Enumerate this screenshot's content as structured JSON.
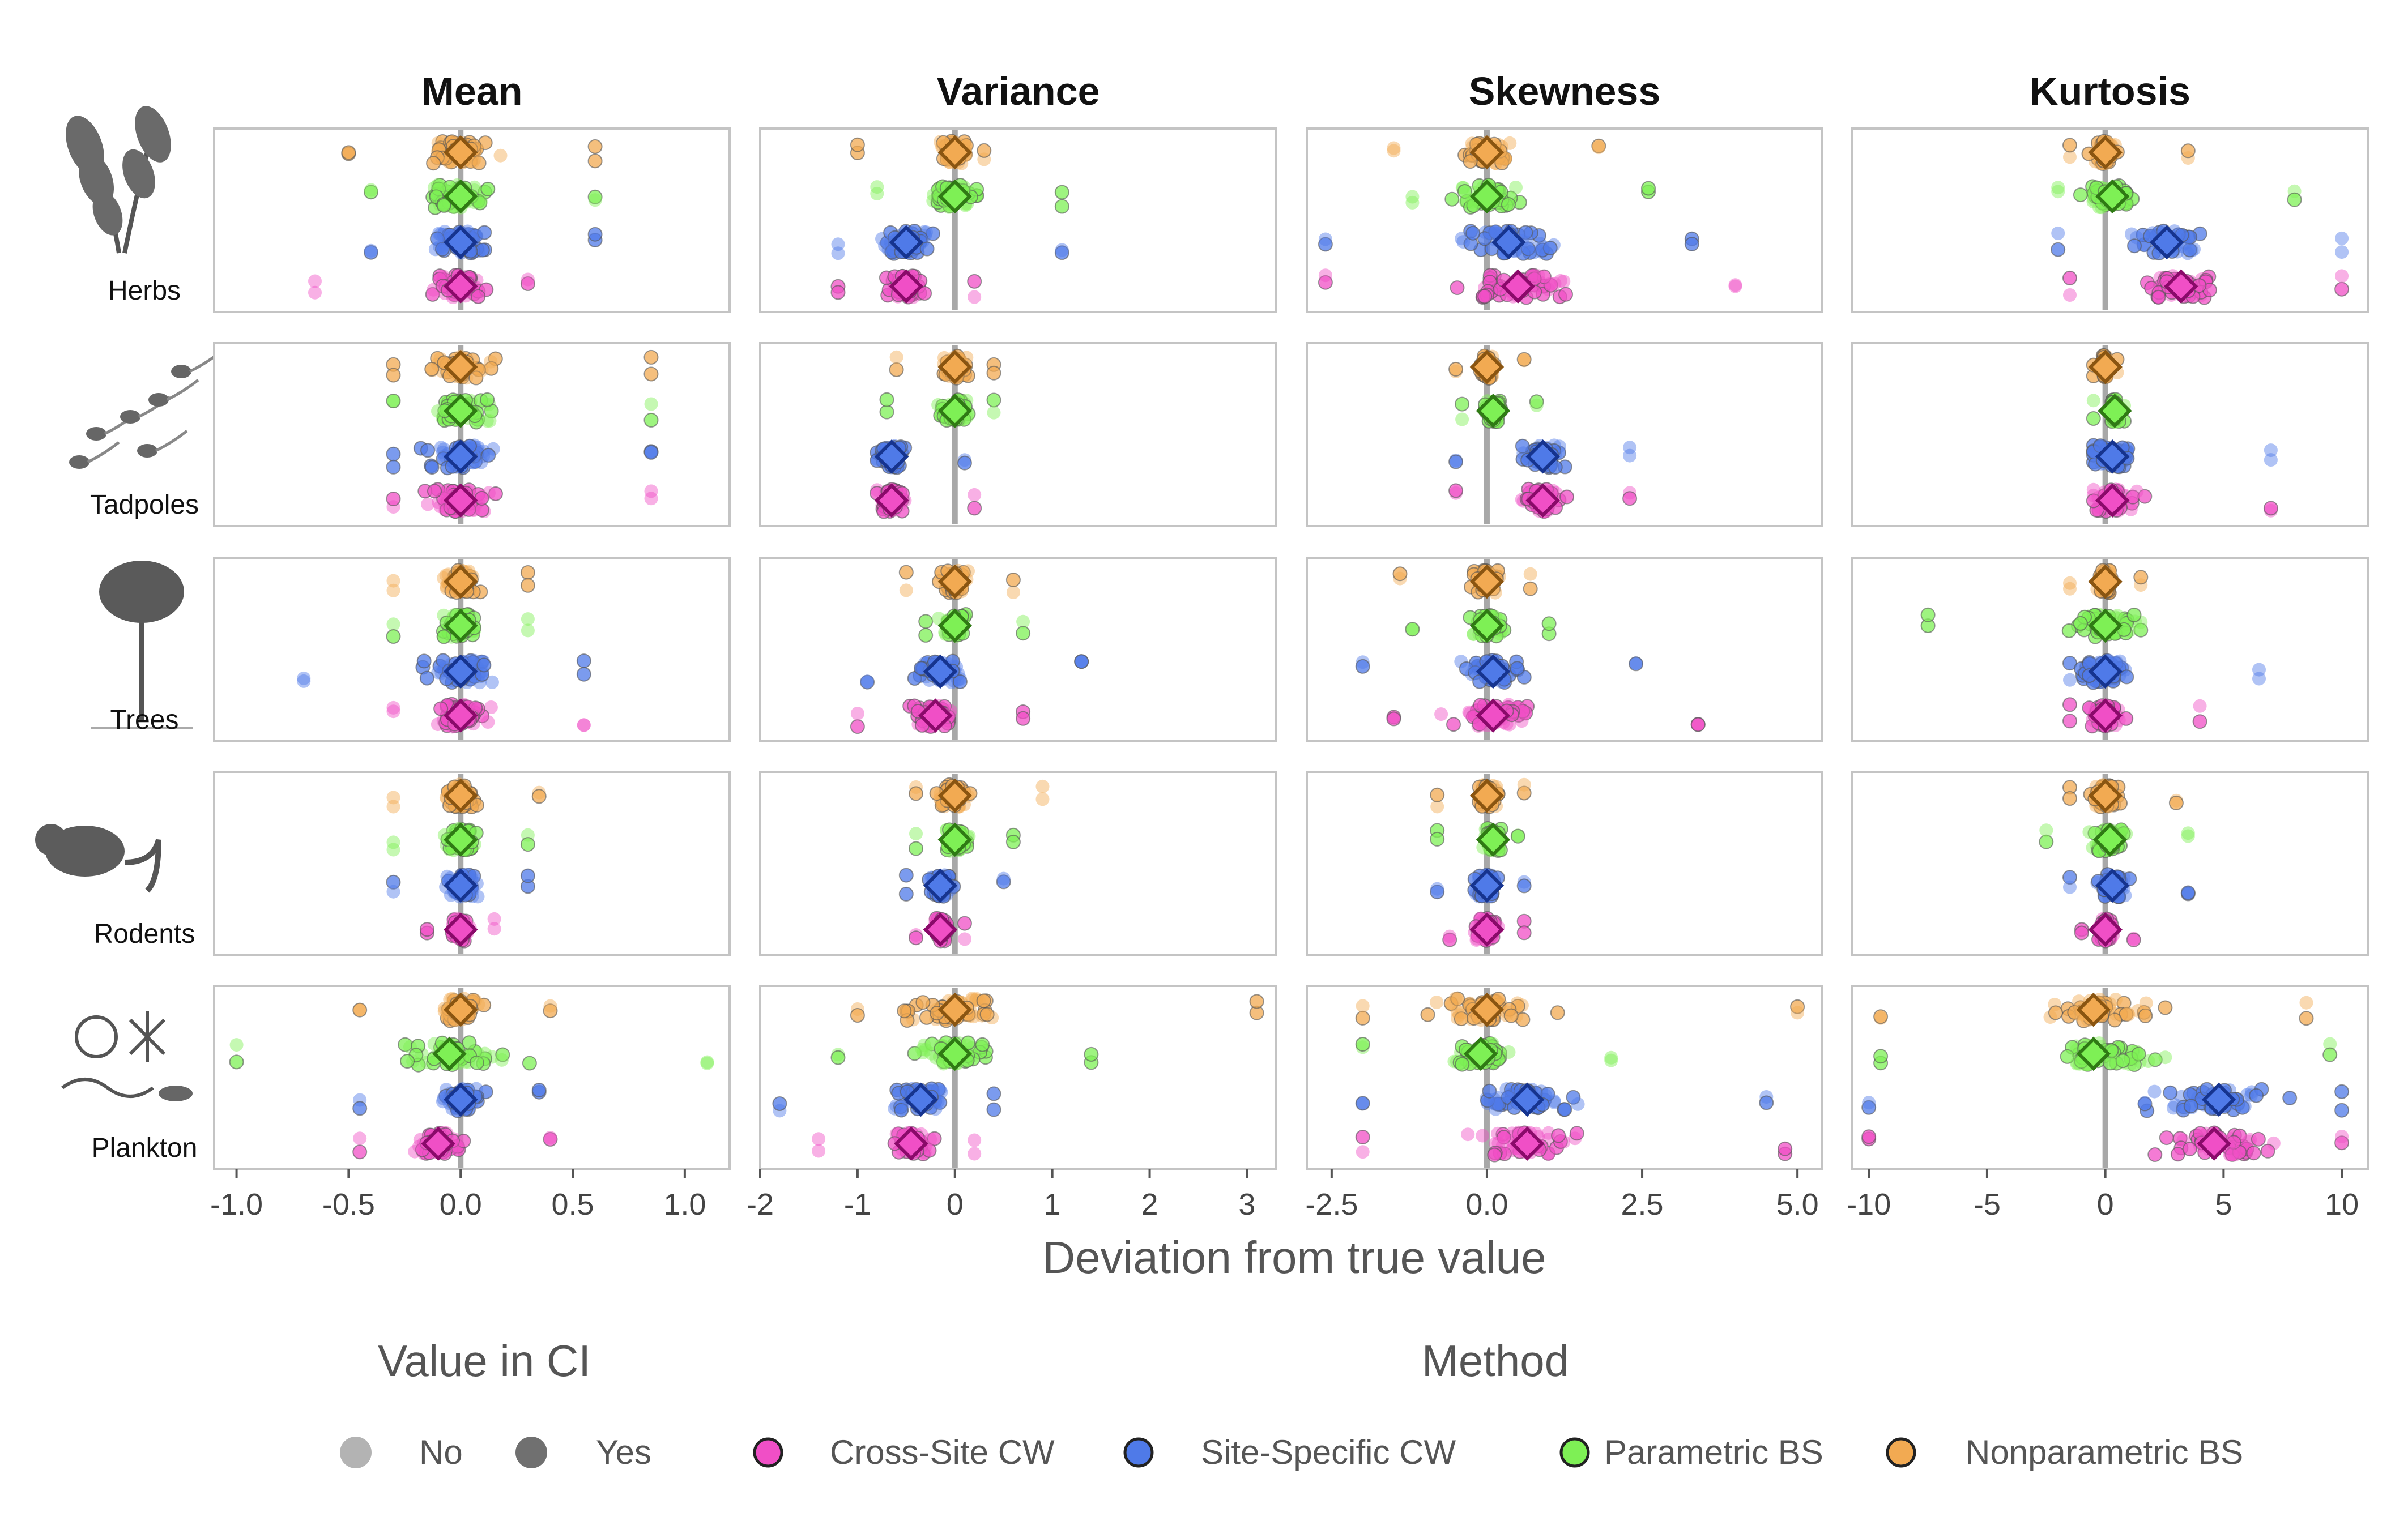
{
  "chart_data": {
    "type": "scatter",
    "facet_columns": [
      "Mean",
      "Variance",
      "Skewness",
      "Kurtosis"
    ],
    "facet_rows": [
      "Herbs",
      "Tadpoles",
      "Trees",
      "Rodents",
      "Plankton"
    ],
    "xlabel": "Deviation from true value",
    "x_ticks": {
      "Mean": [
        "-1.0",
        "-0.5",
        "0.0",
        "0.5",
        "1.0"
      ],
      "Variance": [
        "-2",
        "-1",
        "0",
        "1",
        "2",
        "3"
      ],
      "Skewness": [
        "-2.5",
        "0.0",
        "2.5",
        "5.0"
      ],
      "Kurtosis": [
        "-10",
        "-5",
        "0",
        "5",
        "10"
      ]
    },
    "x_ranges": {
      "Mean": [
        -1.1,
        1.2
      ],
      "Variance": [
        -2,
        3.3
      ],
      "Skewness": [
        -2.9,
        5.4
      ],
      "Kurtosis": [
        -10.7,
        11.1
      ]
    },
    "reference_line": 0,
    "grid": false,
    "legend_position": "bottom",
    "legend": {
      "ci_title": "Value in CI",
      "ci_items": [
        {
          "label": "No",
          "color": "#b3b3b3"
        },
        {
          "label": "Yes",
          "color": "#707070"
        }
      ],
      "method_title": "Method",
      "method_items": [
        {
          "label": "Cross-Site CW",
          "color": "#f04fc6",
          "stroke": "#8a0a6a"
        },
        {
          "label": "Site-Specific CW",
          "color": "#4f7ae8",
          "stroke": "#16348f"
        },
        {
          "label": "Parametric BS",
          "color": "#7ef055",
          "stroke": "#2f7a14"
        },
        {
          "label": "Nonparametric BS",
          "color": "#f2aa52",
          "stroke": "#8a5511"
        }
      ]
    },
    "series_order": [
      "Nonparametric BS",
      "Parametric BS",
      "Site-Specific CW",
      "Cross-Site CW"
    ],
    "median_deviation": {
      "Herbs": {
        "Mean": [
          0.0,
          0.0,
          0.0,
          0.0
        ],
        "Variance": [
          0.0,
          0.0,
          -0.5,
          -0.5
        ],
        "Skewness": [
          0.0,
          0.0,
          0.35,
          0.5
        ],
        "Kurtosis": [
          0.0,
          0.3,
          2.6,
          3.2
        ]
      },
      "Tadpoles": {
        "Mean": [
          0.0,
          0.0,
          0.0,
          0.0
        ],
        "Variance": [
          0.0,
          0.0,
          -0.65,
          -0.65
        ],
        "Skewness": [
          0.0,
          0.1,
          0.9,
          0.9
        ],
        "Kurtosis": [
          0.0,
          0.4,
          0.3,
          0.3
        ]
      },
      "Trees": {
        "Mean": [
          0.0,
          0.0,
          0.0,
          0.0
        ],
        "Variance": [
          0.0,
          0.0,
          -0.15,
          -0.2
        ],
        "Skewness": [
          0.0,
          0.0,
          0.1,
          0.1
        ],
        "Kurtosis": [
          0.0,
          0.0,
          0.0,
          0.0
        ]
      },
      "Rodents": {
        "Mean": [
          0.0,
          0.0,
          0.0,
          0.0
        ],
        "Variance": [
          0.0,
          0.0,
          -0.15,
          -0.15
        ],
        "Skewness": [
          0.0,
          0.1,
          0.0,
          0.0
        ],
        "Kurtosis": [
          0.0,
          0.2,
          0.3,
          0.0
        ]
      },
      "Plankton": {
        "Mean": [
          0.0,
          -0.05,
          0.0,
          -0.1
        ],
        "Variance": [
          0.0,
          0.0,
          -0.35,
          -0.45
        ],
        "Skewness": [
          0.0,
          -0.1,
          0.65,
          0.65
        ],
        "Kurtosis": [
          -0.5,
          -0.5,
          4.8,
          4.6
        ]
      }
    },
    "point_spread": {
      "Herbs": {
        "Mean": [
          [
            -0.5,
            0.6
          ],
          [
            -0.4,
            0.6
          ],
          [
            -0.4,
            0.6
          ],
          [
            -0.65,
            0.3
          ]
        ],
        "Variance": [
          [
            -1.0,
            0.3
          ],
          [
            -0.8,
            1.1
          ],
          [
            -1.2,
            1.1
          ],
          [
            -1.2,
            0.2
          ]
        ],
        "Skewness": [
          [
            -1.5,
            1.8
          ],
          [
            -1.2,
            2.6
          ],
          [
            -2.6,
            3.3
          ],
          [
            -2.6,
            4.0
          ]
        ],
        "Kurtosis": [
          [
            -1.5,
            3.5
          ],
          [
            -2.0,
            8.0
          ],
          [
            -2.0,
            10.0
          ],
          [
            -1.5,
            10.0
          ]
        ]
      },
      "Tadpoles": {
        "Mean": [
          [
            -0.3,
            0.85
          ],
          [
            -0.3,
            0.85
          ],
          [
            -0.3,
            0.85
          ],
          [
            -0.3,
            0.85
          ]
        ],
        "Variance": [
          [
            -0.6,
            0.4
          ],
          [
            -0.7,
            0.4
          ],
          [
            -0.8,
            0.1
          ],
          [
            -0.8,
            0.2
          ]
        ],
        "Skewness": [
          [
            -0.5,
            0.6
          ],
          [
            -0.4,
            0.8
          ],
          [
            -0.5,
            2.3
          ],
          [
            -0.5,
            2.3
          ]
        ],
        "Kurtosis": [
          [
            -0.5,
            0.5
          ],
          [
            -0.5,
            0.8
          ],
          [
            -0.5,
            7.0
          ],
          [
            -0.5,
            7.0
          ]
        ]
      },
      "Trees": {
        "Mean": [
          [
            -0.3,
            0.3
          ],
          [
            -0.3,
            0.3
          ],
          [
            -0.7,
            0.55
          ],
          [
            -0.3,
            0.55
          ]
        ],
        "Variance": [
          [
            -0.5,
            0.6
          ],
          [
            -0.3,
            0.7
          ],
          [
            -0.9,
            1.3
          ],
          [
            -1.0,
            0.7
          ]
        ],
        "Skewness": [
          [
            -1.4,
            0.7
          ],
          [
            -1.2,
            1.0
          ],
          [
            -2.0,
            2.4
          ],
          [
            -1.5,
            3.4
          ]
        ],
        "Kurtosis": [
          [
            -1.5,
            1.5
          ],
          [
            -7.5,
            1.5
          ],
          [
            -1.5,
            6.5
          ],
          [
            -1.5,
            4.0
          ]
        ]
      },
      "Rodents": {
        "Mean": [
          [
            -0.3,
            0.35
          ],
          [
            -0.3,
            0.3
          ],
          [
            -0.3,
            0.3
          ],
          [
            -0.15,
            0.15
          ]
        ],
        "Variance": [
          [
            -0.4,
            0.9
          ],
          [
            -0.4,
            0.6
          ],
          [
            -0.5,
            0.5
          ],
          [
            -0.4,
            0.1
          ]
        ],
        "Skewness": [
          [
            -0.8,
            0.6
          ],
          [
            -0.8,
            0.5
          ],
          [
            -0.8,
            0.6
          ],
          [
            -0.6,
            0.6
          ]
        ],
        "Kurtosis": [
          [
            -1.5,
            3.0
          ],
          [
            -2.5,
            3.5
          ],
          [
            -1.5,
            3.5
          ],
          [
            -1.0,
            1.2
          ]
        ]
      },
      "Plankton": {
        "Mean": [
          [
            -0.45,
            0.4
          ],
          [
            -1.0,
            1.1
          ],
          [
            -0.45,
            0.35
          ],
          [
            -0.45,
            0.4
          ]
        ],
        "Variance": [
          [
            -1.0,
            3.1
          ],
          [
            -1.2,
            1.4
          ],
          [
            -1.8,
            0.4
          ],
          [
            -1.4,
            0.2
          ]
        ],
        "Skewness": [
          [
            -2.0,
            5.0
          ],
          [
            -2.0,
            2.0
          ],
          [
            -2.0,
            4.5
          ],
          [
            -2.0,
            4.8
          ]
        ],
        "Kurtosis": [
          [
            -9.5,
            8.5
          ],
          [
            -9.5,
            9.5
          ],
          [
            -10.0,
            10.0
          ],
          [
            -10.0,
            10.0
          ]
        ]
      }
    }
  }
}
